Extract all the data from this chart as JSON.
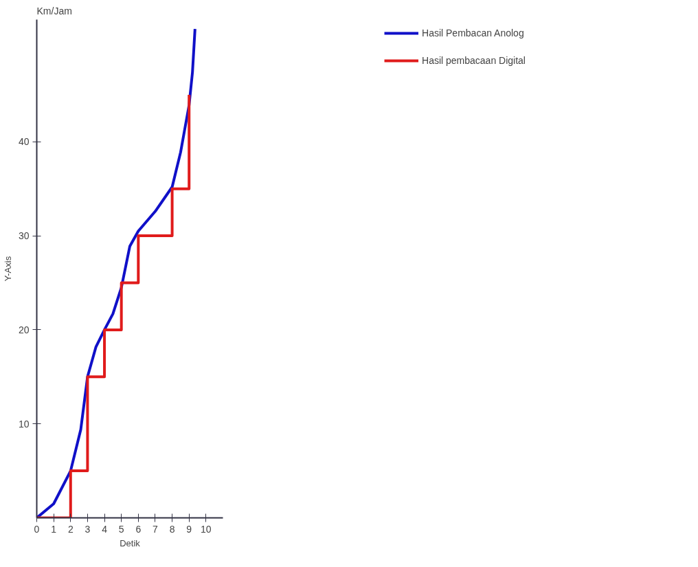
{
  "chart_data": {
    "type": "line",
    "xlabel": "Detik",
    "ylabel": "Y-Axis",
    "annotations": [
      "Km/Jam"
    ],
    "xlim": [
      0,
      11
    ],
    "ylim": [
      0,
      53
    ],
    "xticks": [
      0,
      1,
      2,
      3,
      4,
      5,
      6,
      7,
      8,
      9,
      10
    ],
    "yticks": [
      10,
      20,
      30,
      40
    ],
    "grid": false,
    "legend": "top right",
    "marker": "none",
    "line_style": "solid",
    "series": [
      {
        "name": "Hasil Pembacan Anolog",
        "color": "#1010c8",
        "x": [
          0,
          1,
          2,
          2.6,
          3,
          3.5,
          4,
          4.5,
          5,
          5.5,
          6,
          7,
          8,
          8.5,
          9,
          9.2,
          9.35
        ],
        "values": [
          0,
          1.5,
          5,
          9.4,
          15,
          18.2,
          20,
          21.7,
          24.5,
          28.9,
          30.5,
          32.6,
          35.2,
          38.9,
          43.9,
          47.4,
          52
        ]
      },
      {
        "name": "Hasil pembacaan Digital",
        "color": "#e01b1b",
        "type": "step",
        "x": [
          0,
          2,
          3,
          4,
          5,
          6,
          8,
          9
        ],
        "values": [
          0,
          5,
          15,
          20,
          25,
          30,
          35,
          45
        ]
      }
    ]
  }
}
